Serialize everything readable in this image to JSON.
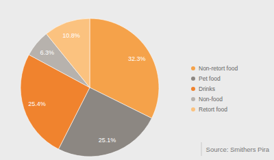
{
  "chart_data": {
    "type": "pie",
    "categories": [
      "Non-retort food",
      "Pet food",
      "Drinks",
      "Non-food",
      "Retort food"
    ],
    "values": [
      32.3,
      25.1,
      25.4,
      6.3,
      10.8
    ],
    "value_labels": [
      "32.3%",
      "25.1%",
      "25.4%",
      "6.3%",
      "10.8%"
    ],
    "colors": [
      "#f5a24a",
      "#8c8782",
      "#f0832e",
      "#b7b2ad",
      "#fbc27f"
    ],
    "data_labels": true,
    "legend": "right",
    "source": "Source: Smithers Pira"
  }
}
